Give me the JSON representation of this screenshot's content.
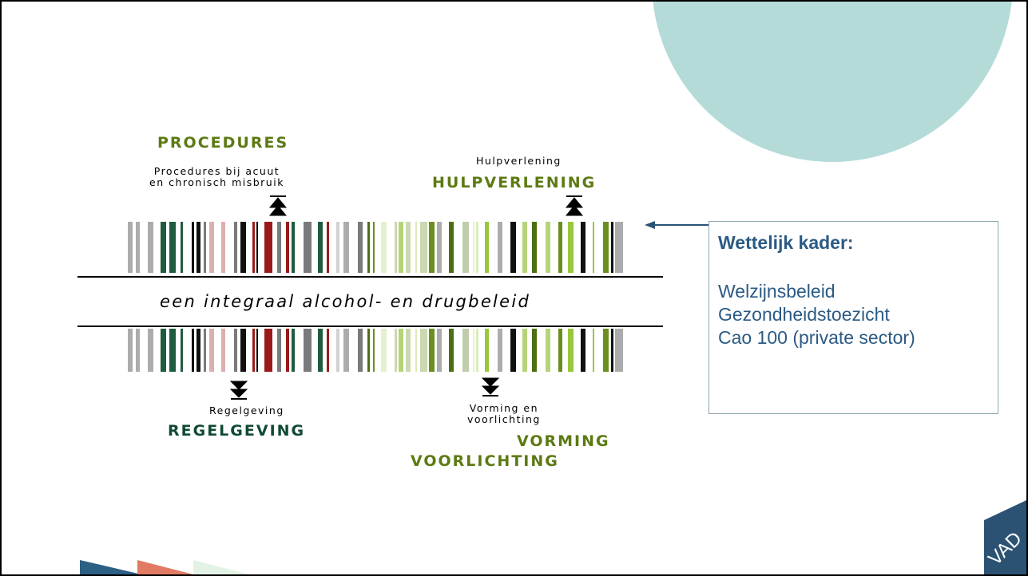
{
  "diagram": {
    "procedures": {
      "heading": "PROCEDURES",
      "caption": [
        "Procedures bij acuut",
        "en chronisch misbruik"
      ]
    },
    "hulpverlening": {
      "caption": "Hulpverlening",
      "heading": "HULPVERLENING"
    },
    "center": "een integraal alcohol- en drugbeleid",
    "regelgeving": {
      "caption": "Regelgeving",
      "heading": "REGELGEVING"
    },
    "vorming": {
      "caption": [
        "Vorming en",
        "voorlichting"
      ],
      "heading": [
        "VORMING",
        "VOORLICHTING"
      ]
    }
  },
  "box": {
    "title": "Wettelijk kader:",
    "items": [
      "Welzijnsbeleid",
      "Gezondheidstoezicht",
      "Cao 100 (private sector)"
    ]
  },
  "logo": "VAD"
}
